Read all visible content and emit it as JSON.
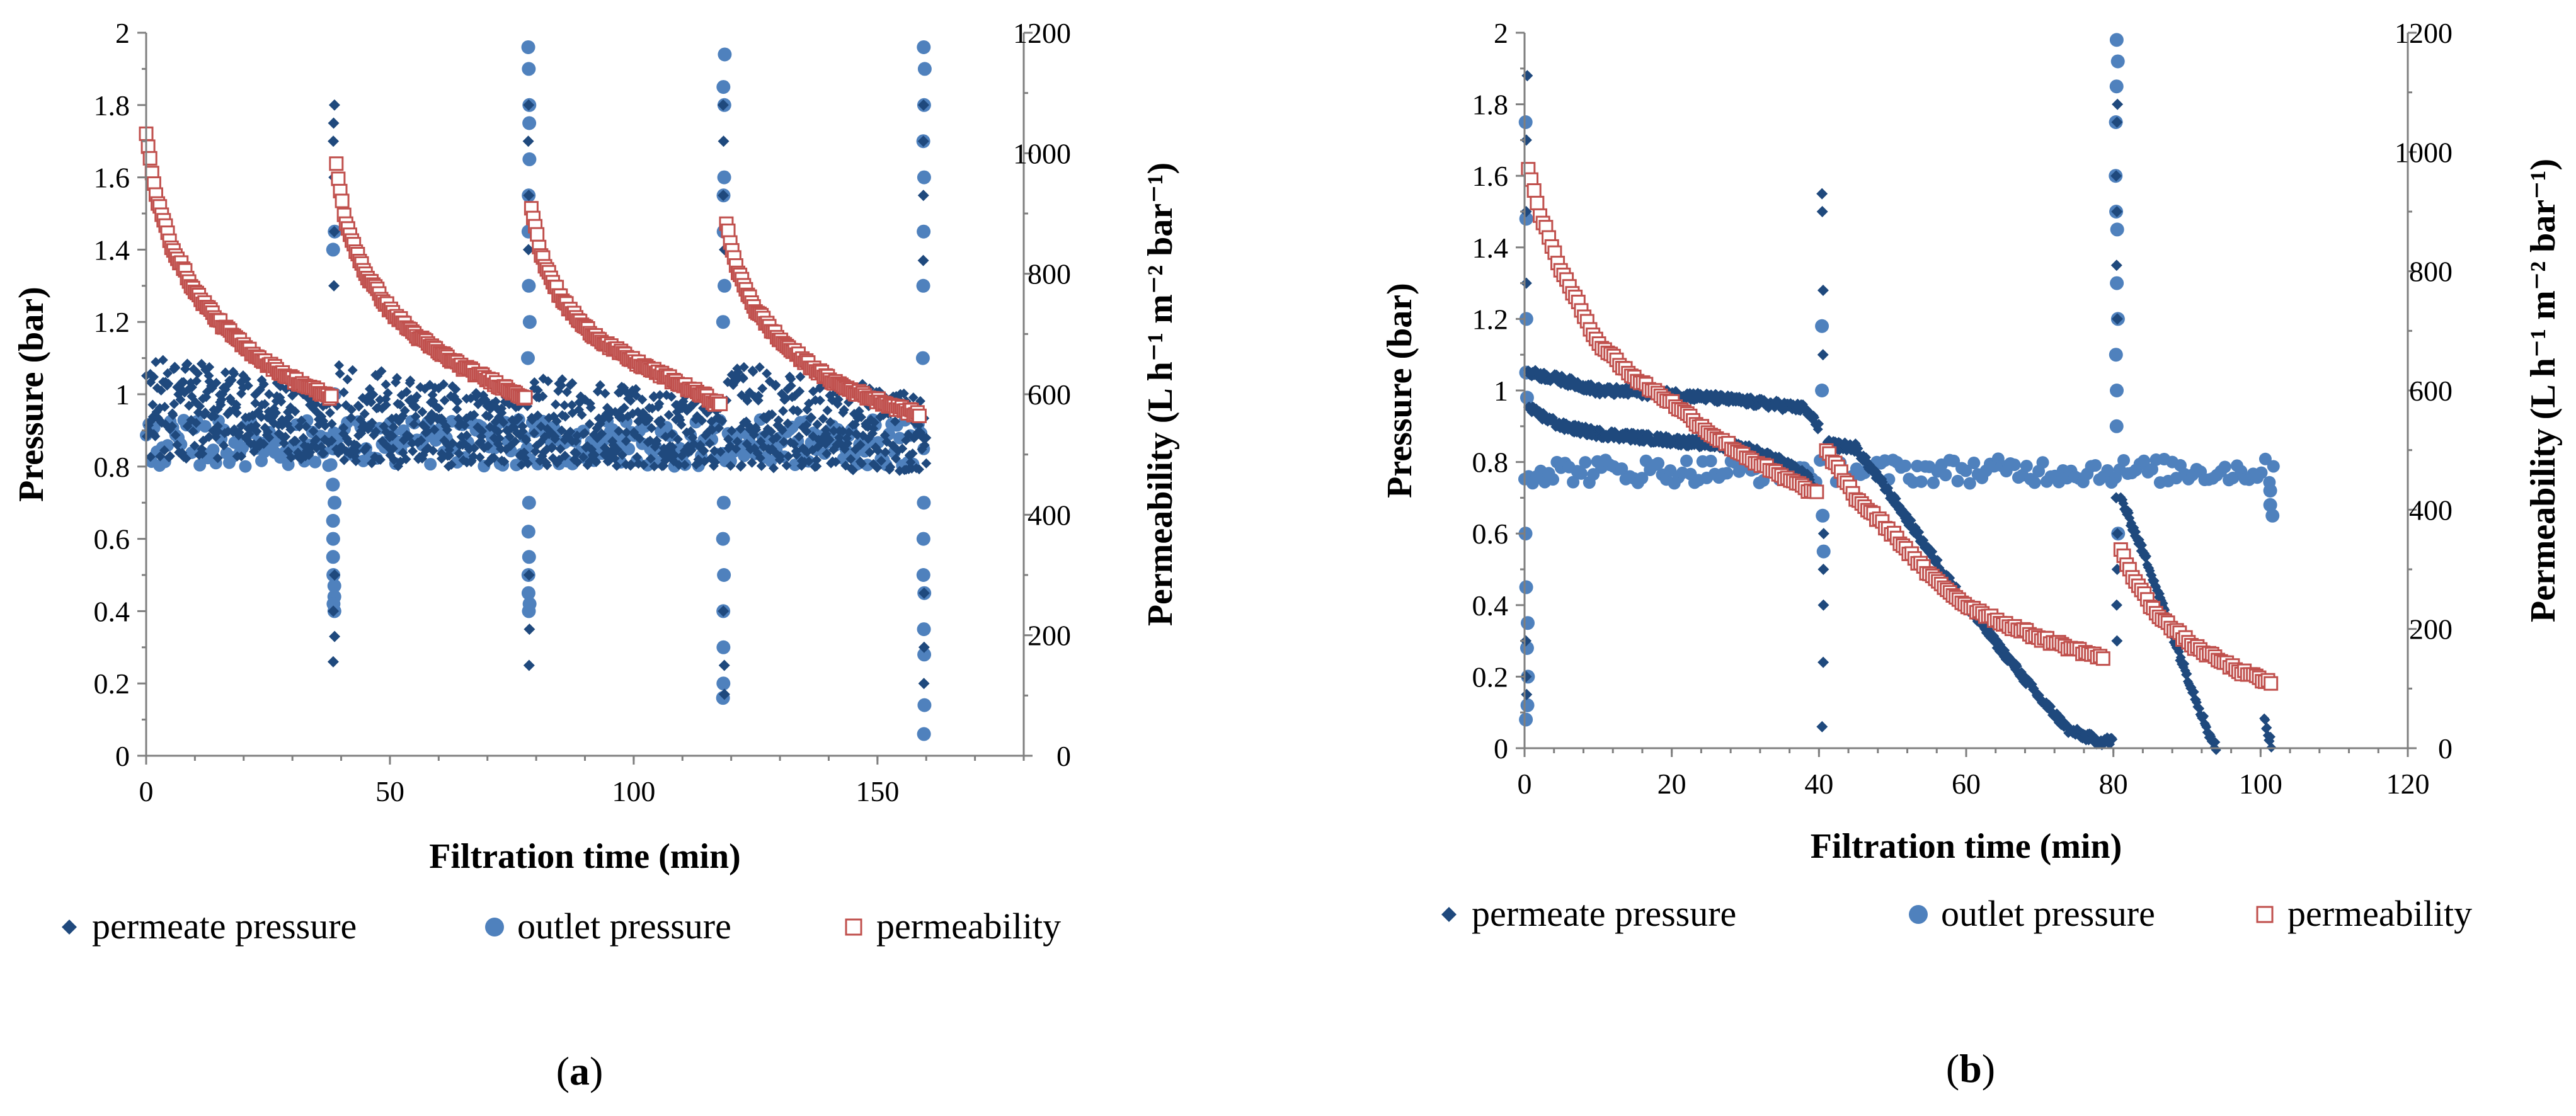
{
  "colors": {
    "permeate_pressure": "#1F497D",
    "outlet_pressure": "#4F81BD",
    "permeability_stroke": "#C0504D",
    "permeability_fill": "#FFFFFF"
  },
  "chart_data": [
    {
      "type": "scatter",
      "panel": "a",
      "panel_label": "a",
      "xlabel": "Filtration time (min)",
      "ylabel": "Pressure (bar)",
      "y2label": "Permeability (L h⁻¹ m⁻² bar⁻¹)",
      "xlim": [
        0,
        180
      ],
      "ylim": [
        0,
        2
      ],
      "y2lim": [
        0,
        1200
      ],
      "xticks": [
        "0",
        "50",
        "100",
        "150"
      ],
      "yticks": [
        "0",
        "0.2",
        "0.4",
        "0.6",
        "0.8",
        "1",
        "1.2",
        "1.4",
        "1.6",
        "1.8",
        "2"
      ],
      "y2ticks": [
        "0",
        "200",
        "400",
        "600",
        "800",
        "1000",
        "1200"
      ],
      "legend": [
        "permeate pressure",
        "outlet pressure",
        "permeability"
      ],
      "series": [
        {
          "name": "permeate pressure",
          "marker": "diamond",
          "axis": "left",
          "segments": [
            {
              "x_start": 0,
              "x_end": 38,
              "y_start_lo": 0.82,
              "y_start_hi": 1.12,
              "y_end_lo": 0.82,
              "y_end_hi": 1.0
            },
            {
              "x_start": 39,
              "x_end": 78,
              "y_start_lo": 0.8,
              "y_start_hi": 1.09,
              "y_end_lo": 0.8,
              "y_end_hi": 0.98
            },
            {
              "x_start": 79,
              "x_end": 118,
              "y_start_lo": 0.8,
              "y_start_hi": 1.06,
              "y_end_lo": 0.8,
              "y_end_hi": 0.98
            },
            {
              "x_start": 119,
              "x_end": 160,
              "y_start_lo": 0.8,
              "y_start_hi": 1.09,
              "y_end_lo": 0.78,
              "y_end_hi": 1.0
            }
          ],
          "spikes": [
            {
              "x": 38.5,
              "values": [
                1.8,
                1.75,
                1.7,
                1.6,
                1.45,
                1.3,
                0.5,
                0.4,
                0.33,
                0.26
              ]
            },
            {
              "x": 78.5,
              "values": [
                1.8,
                1.7,
                1.55,
                1.4,
                0.5,
                0.35,
                0.25
              ]
            },
            {
              "x": 118.5,
              "values": [
                1.8,
                1.7,
                1.55,
                1.4,
                0.4,
                0.25,
                0.17
              ]
            },
            {
              "x": 159.5,
              "values": [
                1.8,
                1.7,
                1.55,
                1.37,
                0.45,
                0.3,
                0.2
              ]
            }
          ]
        },
        {
          "name": "outlet pressure",
          "marker": "circle",
          "axis": "left",
          "band": {
            "x_start": 0,
            "x_end": 160,
            "y_lo": 0.8,
            "y_hi": 0.93
          },
          "spikes": [
            {
              "x": 38.5,
              "values": [
                1.45,
                1.4,
                1.0,
                0.85,
                0.75,
                0.7,
                0.65,
                0.6,
                0.55,
                0.5,
                0.47,
                0.44,
                0.42,
                0.4
              ]
            },
            {
              "x": 78.5,
              "values": [
                1.96,
                1.9,
                1.8,
                1.75,
                1.65,
                1.55,
                1.45,
                1.3,
                1.2,
                1.1,
                0.7,
                0.62,
                0.55,
                0.5,
                0.45,
                0.42,
                0.4
              ]
            },
            {
              "x": 118.5,
              "values": [
                1.94,
                1.85,
                1.8,
                1.6,
                1.55,
                1.45,
                1.3,
                1.2,
                0.7,
                0.6,
                0.5,
                0.4,
                0.3,
                0.2,
                0.16
              ]
            },
            {
              "x": 159.5,
              "values": [
                1.96,
                1.9,
                1.8,
                1.7,
                1.6,
                1.45,
                1.3,
                1.1,
                0.7,
                0.6,
                0.5,
                0.45,
                0.35,
                0.28,
                0.14,
                0.06
              ]
            }
          ]
        },
        {
          "name": "permeability",
          "marker": "square-open",
          "axis": "right",
          "curves": [
            {
              "x": [
                0,
                2,
                5,
                10,
                15,
                20,
                25,
                30,
                35,
                38
              ],
              "y": [
                1030,
                930,
                850,
                770,
                720,
                680,
                650,
                625,
                605,
                595
              ]
            },
            {
              "x": [
                39,
                41,
                45,
                50,
                55,
                60,
                65,
                70,
                75,
                78
              ],
              "y": [
                980,
                880,
                800,
                740,
                700,
                670,
                645,
                625,
                605,
                595
              ]
            },
            {
              "x": [
                79,
                81,
                85,
                90,
                95,
                100,
                105,
                110,
                115,
                118
              ],
              "y": [
                910,
                830,
                760,
                710,
                680,
                655,
                635,
                615,
                595,
                580
              ]
            },
            {
              "x": [
                119,
                121,
                125,
                130,
                135,
                140,
                145,
                150,
                155,
                159
              ],
              "y": [
                885,
                810,
                740,
                690,
                655,
                625,
                605,
                590,
                575,
                565
              ]
            }
          ]
        }
      ]
    },
    {
      "type": "scatter",
      "panel": "b",
      "panel_label": "b",
      "xlabel": "Filtration time (min)",
      "ylabel": "Pressure (bar)",
      "y2label": "Permeability (L h⁻¹ m⁻² bar⁻¹)",
      "xlim": [
        0,
        120
      ],
      "ylim": [
        0,
        2
      ],
      "y2lim": [
        0,
        1200
      ],
      "xticks": [
        "0",
        "20",
        "40",
        "60",
        "80",
        "100",
        "120"
      ],
      "yticks": [
        "0",
        "0.2",
        "0.4",
        "0.6",
        "0.8",
        "1",
        "1.2",
        "1.4",
        "1.6",
        "1.8",
        "2"
      ],
      "y2ticks": [
        "0",
        "200",
        "400",
        "600",
        "800",
        "1000",
        "1200"
      ],
      "legend": [
        "permeate pressure",
        "outlet pressure",
        "permeability"
      ],
      "series": [
        {
          "name": "permeate pressure",
          "marker": "diamond",
          "axis": "left",
          "lines": [
            {
              "x": [
                0.5,
                5,
                10,
                20,
                30,
                38,
                40
              ],
              "y": [
                1.05,
                1.03,
                1.0,
                0.99,
                0.97,
                0.95,
                0.9
              ]
            },
            {
              "x": [
                0.5,
                5,
                10,
                15,
                20,
                25,
                30,
                35,
                39
              ],
              "y": [
                0.95,
                0.9,
                0.88,
                0.87,
                0.86,
                0.85,
                0.84,
                0.8,
                0.75
              ]
            },
            {
              "x": [
                41,
                45,
                50,
                55,
                60,
                65,
                70,
                74,
                78,
                80
              ],
              "y": [
                0.85,
                0.84,
                0.7,
                0.55,
                0.4,
                0.27,
                0.14,
                0.05,
                0.02,
                0.02
              ]
            },
            {
              "x": [
                81,
                83,
                85,
                87,
                89,
                91,
                93,
                94
              ],
              "y": [
                0.7,
                0.6,
                0.5,
                0.38,
                0.26,
                0.15,
                0.04,
                0.0
              ]
            },
            {
              "x": [
                100.5,
                101,
                101.5
              ],
              "y": [
                0.08,
                0.04,
                0.01
              ]
            }
          ],
          "spikes": [
            {
              "x": 0.3,
              "values": [
                1.88,
                1.7,
                1.5,
                1.3,
                0.3,
                0.2,
                0.15
              ]
            },
            {
              "x": 40.5,
              "values": [
                1.55,
                1.5,
                1.28,
                1.1,
                0.6,
                0.5,
                0.4,
                0.24,
                0.06
              ]
            },
            {
              "x": 80.5,
              "values": [
                1.8,
                1.75,
                1.6,
                1.5,
                1.35,
                1.2,
                0.7,
                0.6,
                0.5,
                0.4,
                0.3
              ]
            }
          ]
        },
        {
          "name": "outlet pressure",
          "marker": "circle",
          "axis": "left",
          "band": {
            "x_start": 0,
            "x_end": 102,
            "y_lo": 0.74,
            "y_hi": 0.81
          },
          "spikes": [
            {
              "x": 0.3,
              "values": [
                1.75,
                1.48,
                1.2,
                1.05,
                0.98,
                0.6,
                0.45,
                0.35,
                0.28,
                0.2,
                0.12,
                0.08
              ]
            },
            {
              "x": 40.5,
              "values": [
                1.18,
                1.0,
                0.65,
                0.55
              ]
            },
            {
              "x": 80.5,
              "values": [
                1.98,
                1.92,
                1.85,
                1.75,
                1.6,
                1.5,
                1.45,
                1.3,
                1.2,
                1.1,
                1.0,
                0.9,
                0.6
              ]
            },
            {
              "x": 101.5,
              "values": [
                0.72,
                0.68,
                0.65
              ]
            }
          ]
        },
        {
          "name": "permeability",
          "marker": "square-open",
          "axis": "right",
          "curves": [
            {
              "x": [
                0.5,
                2,
                5,
                10,
                15,
                20,
                25,
                30,
                35,
                40
              ],
              "y": [
                970,
                900,
                800,
                680,
                620,
                580,
                530,
                490,
                455,
                425
              ]
            },
            {
              "x": [
                41,
                43,
                45,
                50,
                55,
                60,
                65,
                70,
                75,
                79
              ],
              "y": [
                500,
                460,
                420,
                360,
                290,
                240,
                210,
                185,
                165,
                150
              ]
            },
            {
              "x": [
                81,
                83,
                85,
                88,
                91,
                94,
                97,
                100,
                101.5
              ],
              "y": [
                330,
                280,
                240,
                200,
                170,
                150,
                130,
                115,
                110
              ]
            }
          ]
        }
      ]
    }
  ]
}
